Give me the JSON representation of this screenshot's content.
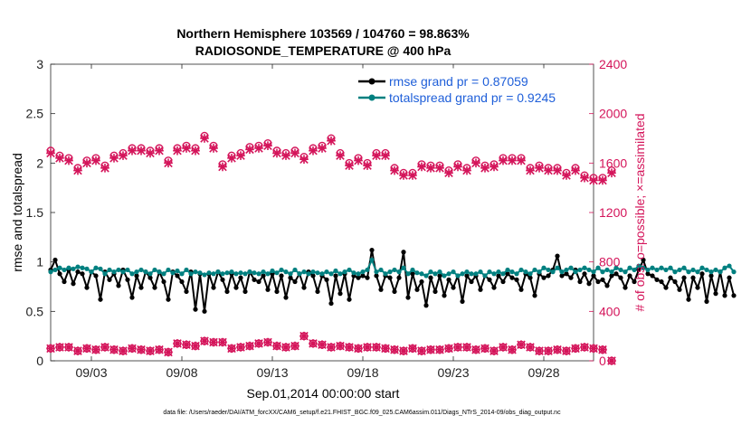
{
  "chart_data": {
    "type": "line",
    "title": "Northern Hemisphere 103569 / 104760 = 98.863%",
    "subtitle": "RADIOSONDE_TEMPERATURE @ 400 hPa",
    "xlabel": "Sep.01,2014 00:00:00 start",
    "ylabel": "rmse and totalspread",
    "ylabel_right": "# of obs: o=possible; ×=assimilated",
    "footnote": "data file: /Users/raeder/DAI/ATM_forcXX/CAM6_setup/f.e21.FHIST_BGC.f09_025.CAM6assim.011/Diags_NTrS_2014-09/obs_diag_output.nc",
    "xlim": [
      0.75,
      30.75
    ],
    "x_ticks": [
      3,
      8,
      13,
      18,
      23,
      28
    ],
    "x_tick_labels": [
      "09/03",
      "09/08",
      "09/13",
      "09/18",
      "09/23",
      "09/28"
    ],
    "ylim": [
      0,
      3
    ],
    "y_ticks": [
      0,
      0.5,
      1,
      1.5,
      2,
      2.5,
      3
    ],
    "y_tick_labels": [
      "0",
      "0.5",
      "1",
      "1.5",
      "2",
      "2.5",
      "3"
    ],
    "ylim_right": [
      0,
      2400
    ],
    "y_right_ticks": [
      0,
      400,
      800,
      1200,
      1600,
      2000,
      2400
    ],
    "y_right_tick_labels": [
      "0",
      "400",
      "800",
      "1200",
      "1600",
      "2000",
      "2400"
    ],
    "grid": false,
    "legend_position": "top-right",
    "colors": {
      "rmse": "#000000",
      "totalspread": "#008080",
      "obs": "#d4145a",
      "legend_text": "#1f5fd9",
      "right_axis": "#d4145a"
    },
    "series": [
      {
        "name": "rmse grand pr = 0.87059",
        "axis": "left",
        "x_start": 0.75,
        "x_step": 0.25,
        "values": [
          0.92,
          1.02,
          0.88,
          0.8,
          0.92,
          0.78,
          0.9,
          0.88,
          0.74,
          0.9,
          0.86,
          0.62,
          0.9,
          0.82,
          0.88,
          0.76,
          0.92,
          0.82,
          0.64,
          0.86,
          0.74,
          0.9,
          0.84,
          0.74,
          0.9,
          0.8,
          0.62,
          0.9,
          0.86,
          0.8,
          0.7,
          0.9,
          0.52,
          0.88,
          0.5,
          0.88,
          0.74,
          0.9,
          0.82,
          0.7,
          0.88,
          0.74,
          0.84,
          0.7,
          0.9,
          0.82,
          0.8,
          0.86,
          0.72,
          0.88,
          0.7,
          0.86,
          0.64,
          0.84,
          0.8,
          0.88,
          0.74,
          0.9,
          0.86,
          0.7,
          0.86,
          0.82,
          0.58,
          0.86,
          0.68,
          0.88,
          0.62,
          0.86,
          0.84,
          0.86,
          0.84,
          1.12,
          0.86,
          0.72,
          0.86,
          0.84,
          0.7,
          0.84,
          1.1,
          0.64,
          0.88,
          0.72,
          0.8,
          0.56,
          0.84,
          0.7,
          0.86,
          0.66,
          0.82,
          0.74,
          0.86,
          0.6,
          0.86,
          0.8,
          0.86,
          0.72,
          0.86,
          0.82,
          0.74,
          0.86,
          0.8,
          0.88,
          0.84,
          0.82,
          0.72,
          0.88,
          0.84,
          0.66,
          0.88,
          0.84,
          0.86,
          0.92,
          1.06,
          0.86,
          0.88,
          0.84,
          0.92,
          0.8,
          0.88,
          0.78,
          0.86,
          0.8,
          0.82,
          0.76,
          0.86,
          0.88,
          0.84,
          0.74,
          0.86,
          0.8,
          0.92,
          1.02,
          0.88,
          0.86,
          0.82,
          0.8,
          0.74,
          0.84,
          0.8,
          0.72,
          0.84,
          0.62,
          0.84,
          0.74,
          0.88,
          0.6,
          0.86,
          0.68,
          0.9,
          0.66,
          0.84,
          0.66
        ]
      },
      {
        "name": "totalspread grand pr = 0.9245",
        "axis": "left",
        "x_start": 0.75,
        "x_step": 0.25,
        "values": [
          0.9,
          0.92,
          0.94,
          0.92,
          0.94,
          0.93,
          0.95,
          0.94,
          0.93,
          0.9,
          0.94,
          0.93,
          0.88,
          0.92,
          0.9,
          0.92,
          0.9,
          0.92,
          0.88,
          0.9,
          0.92,
          0.9,
          0.88,
          0.92,
          0.9,
          0.88,
          0.92,
          0.89,
          0.91,
          0.88,
          0.92,
          0.88,
          0.9,
          0.89,
          0.87,
          0.89,
          0.88,
          0.9,
          0.88,
          0.89,
          0.9,
          0.88,
          0.89,
          0.88,
          0.9,
          0.89,
          0.88,
          0.9,
          0.88,
          0.91,
          0.89,
          0.92,
          0.9,
          0.88,
          0.92,
          0.88,
          0.9,
          0.88,
          0.9,
          0.89,
          0.88,
          0.9,
          0.88,
          0.91,
          0.88,
          0.9,
          0.92,
          0.89,
          0.88,
          0.9,
          0.92,
          1.02,
          0.9,
          0.92,
          0.88,
          0.9,
          0.92,
          0.9,
          0.94,
          0.88,
          0.92,
          0.89,
          0.88,
          0.86,
          0.9,
          0.88,
          0.9,
          0.86,
          0.88,
          0.9,
          0.86,
          0.88,
          0.9,
          0.88,
          0.88,
          0.9,
          0.86,
          0.9,
          0.88,
          0.9,
          0.88,
          0.92,
          0.9,
          0.88,
          0.92,
          0.9,
          0.88,
          0.92,
          0.9,
          0.94,
          0.92,
          0.9,
          0.94,
          0.9,
          0.92,
          0.94,
          0.9,
          0.92,
          0.94,
          0.92,
          0.9,
          0.94,
          0.9,
          0.92,
          0.9,
          0.94,
          0.92,
          0.9,
          0.94,
          0.92,
          0.96,
          0.94,
          0.92,
          0.94,
          0.92,
          0.94,
          0.92,
          0.94,
          0.9,
          0.92,
          0.94,
          0.9,
          0.92,
          0.9,
          0.94,
          0.92,
          0.9,
          0.92,
          0.9,
          0.94,
          0.96,
          0.9
        ]
      },
      {
        "name": "obs possible",
        "axis": "right",
        "marker": "o",
        "x_start": 0.75,
        "x_step": 0.5,
        "values": [
          1700,
          1660,
          1640,
          1560,
          1620,
          1640,
          1580,
          1660,
          1680,
          1720,
          1720,
          1700,
          1720,
          1620,
          1720,
          1740,
          1720,
          1820,
          1740,
          1590,
          1660,
          1680,
          1730,
          1740,
          1760,
          1700,
          1680,
          1700,
          1650,
          1720,
          1740,
          1800,
          1680,
          1600,
          1640,
          1600,
          1680,
          1680,
          1560,
          1520,
          1520,
          1590,
          1580,
          1580,
          1540,
          1590,
          1560,
          1620,
          1580,
          1590,
          1640,
          1640,
          1640,
          1560,
          1580,
          1560,
          1560,
          1520,
          1560,
          1500,
          1480,
          1480,
          1540
        ]
      },
      {
        "name": "obs assimilated",
        "axis": "right",
        "marker": "x",
        "x_start": 0.75,
        "x_step": 0.5,
        "values": [
          1680,
          1640,
          1620,
          1540,
          1600,
          1620,
          1560,
          1640,
          1660,
          1700,
          1700,
          1680,
          1700,
          1600,
          1700,
          1720,
          1700,
          1800,
          1720,
          1570,
          1640,
          1660,
          1710,
          1720,
          1740,
          1680,
          1660,
          1680,
          1630,
          1700,
          1720,
          1780,
          1660,
          1580,
          1620,
          1580,
          1660,
          1660,
          1540,
          1500,
          1500,
          1570,
          1560,
          1560,
          1520,
          1570,
          1540,
          1600,
          1560,
          1570,
          1620,
          1620,
          1620,
          1540,
          1560,
          1540,
          1540,
          1500,
          1540,
          1480,
          1460,
          1460,
          1520
        ]
      },
      {
        "name": "obs possible lower",
        "axis": "right",
        "marker": "o",
        "x_start": 0.75,
        "x_step": 0.5,
        "values": [
          100,
          110,
          110,
          80,
          100,
          90,
          110,
          90,
          80,
          100,
          90,
          80,
          90,
          70,
          140,
          130,
          120,
          160,
          150,
          150,
          100,
          110,
          120,
          140,
          150,
          120,
          110,
          120,
          200,
          140,
          130,
          110,
          120,
          110,
          100,
          110,
          110,
          100,
          90,
          80,
          100,
          80,
          90,
          90,
          100,
          110,
          110,
          90,
          100,
          80,
          110,
          90,
          130,
          110,
          80,
          80,
          90,
          80,
          100,
          110,
          100,
          90,
          0
        ]
      },
      {
        "name": "obs assimilated lower",
        "axis": "right",
        "marker": "x",
        "x_start": 0.75,
        "x_step": 0.5,
        "values": [
          100,
          110,
          110,
          80,
          100,
          90,
          110,
          90,
          80,
          100,
          90,
          80,
          90,
          70,
          140,
          130,
          120,
          160,
          150,
          150,
          100,
          110,
          120,
          140,
          150,
          120,
          110,
          120,
          200,
          140,
          130,
          110,
          120,
          110,
          100,
          110,
          110,
          100,
          90,
          80,
          100,
          80,
          90,
          90,
          100,
          110,
          110,
          90,
          100,
          80,
          110,
          90,
          130,
          110,
          80,
          80,
          90,
          80,
          100,
          110,
          100,
          90,
          0
        ]
      }
    ]
  }
}
